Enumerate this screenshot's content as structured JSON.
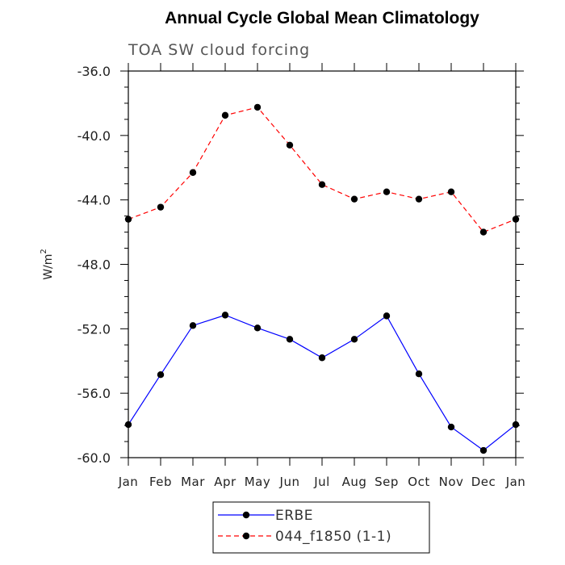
{
  "chart_data": {
    "type": "line",
    "title": "Annual Cycle Global Mean Climatology",
    "subtitle": "TOA SW cloud forcing",
    "xlabel": "",
    "ylabel": "W/m",
    "ylabel_superscript": "2",
    "categories": [
      "Jan",
      "Feb",
      "Mar",
      "Apr",
      "May",
      "Jun",
      "Jul",
      "Aug",
      "Sep",
      "Oct",
      "Nov",
      "Dec",
      "Jan"
    ],
    "ylim": [
      -60.0,
      -36.0
    ],
    "yticks": [
      "-36.0",
      "-40.0",
      "-44.0",
      "-48.0",
      "-52.0",
      "-56.0",
      "-60.0"
    ],
    "ytick_values": [
      -36,
      -40,
      -44,
      -48,
      -52,
      -56,
      -60
    ],
    "grid": false,
    "legend_position": "bottom-center",
    "series": [
      {
        "name": "ERBE",
        "color": "#0000ff",
        "dash": "solid",
        "values": [
          -57.95,
          -54.85,
          -51.8,
          -51.15,
          -51.95,
          -52.65,
          -53.8,
          -52.65,
          -51.2,
          -54.8,
          -58.1,
          -59.55,
          -57.95
        ]
      },
      {
        "name": "044_f1850 (1-1)",
        "color": "#ff0000",
        "dash": "dashed",
        "values": [
          -45.2,
          -44.45,
          -42.3,
          -38.75,
          -38.25,
          -40.6,
          -43.05,
          -43.95,
          -43.5,
          -43.95,
          -43.5,
          -46.0,
          -45.2
        ]
      }
    ]
  }
}
